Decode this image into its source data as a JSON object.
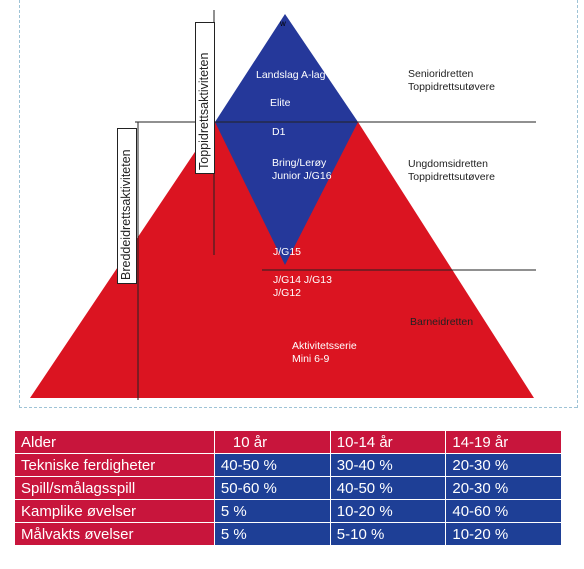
{
  "diagram": {
    "left_labels": {
      "toppidrett": "Toppidrettsaktiviteten",
      "bredde": "Breddeidrettsaktiviteten"
    },
    "pyramid_labels": {
      "top": "w",
      "landslag": "Landslag A-lag",
      "elite": "Elite",
      "d1": "D1",
      "bring": "Bring/Lerøy\nJunior J/G16",
      "jg15": "J/G15",
      "jg14": "J/G14 J/G13\nJ/G12",
      "aktivitet": "Aktivitetsserie\nMini 6-9"
    },
    "right_labels": {
      "senior": "Senioridretten\nToppidrettsutøvere",
      "ungdom": "Ungdomsidretten\nToppidrettsutøvere",
      "barne": "Barneidretten"
    },
    "colors": {
      "red": "#db1421",
      "blue": "#25389a",
      "table_red": "#c8153c",
      "table_blue": "#1e3f96"
    }
  },
  "table": {
    "header": [
      "Alder",
      "10 år",
      "10-14 år",
      "14-19 år"
    ],
    "rows": [
      [
        "Tekniske ferdigheter",
        "40-50 %",
        "30-40 %",
        "20-30 %"
      ],
      [
        "Spill/smålagsspill",
        "50-60 %",
        "40-50 %",
        "20-30 %"
      ],
      [
        "Kamplike øvelser",
        "5 %",
        "10-20 %",
        "40-60 %"
      ],
      [
        "Målvakts øvelser",
        "5 %",
        "5-10 %",
        "10-20 %"
      ]
    ]
  }
}
